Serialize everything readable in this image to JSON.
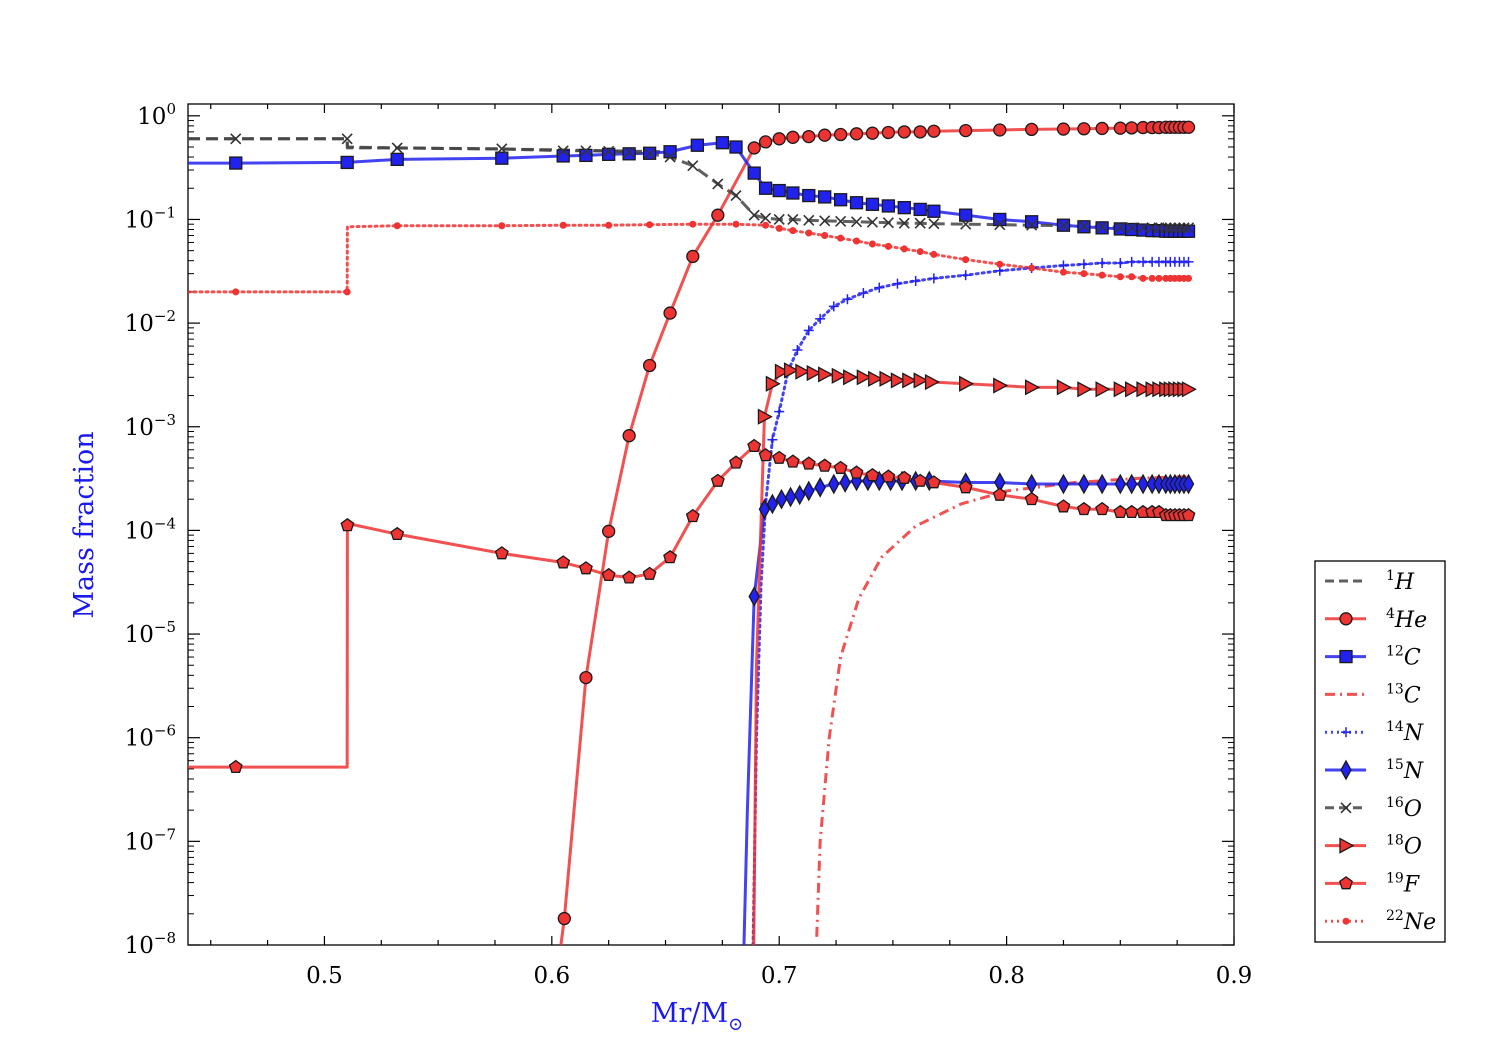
{
  "chart_data": {
    "type": "line",
    "title": "",
    "xlabel": "Mr/M",
    "xlabel_sub": "⊙",
    "ylabel": "Mass fraction",
    "xscale": "linear",
    "yscale": "log",
    "xlim": [
      0.44,
      0.9
    ],
    "ylim": [
      1e-08,
      1.3
    ],
    "x_ticks": [
      0.5,
      0.6,
      0.7,
      0.8,
      0.9
    ],
    "x_tick_labels": [
      "0.5",
      "0.6",
      "0.7",
      "0.8",
      "0.9"
    ],
    "y_ticks": [
      {
        "value": 1,
        "base": "10",
        "exp": "0"
      },
      {
        "value": 0.1,
        "base": "10",
        "exp": "−1"
      },
      {
        "value": 0.01,
        "base": "10",
        "exp": "−2"
      },
      {
        "value": 0.001,
        "base": "10",
        "exp": "−3"
      },
      {
        "value": 0.0001,
        "base": "10",
        "exp": "−4"
      },
      {
        "value": 1e-05,
        "base": "10",
        "exp": "−5"
      },
      {
        "value": 1e-06,
        "base": "10",
        "exp": "−6"
      },
      {
        "value": 1e-07,
        "base": "10",
        "exp": "−7"
      },
      {
        "value": 1e-08,
        "base": "10",
        "exp": "−8"
      }
    ],
    "grid": false,
    "legend_position": "right, outside, below center",
    "series": [
      {
        "key": "H1",
        "mass": "1",
        "element": "H",
        "color": "#444444",
        "dash": "dashed",
        "marker": "none",
        "x": [
          0.44,
          0.51,
          0.5101,
          0.53,
          0.57,
          0.6,
          0.65
        ],
        "y": [
          0.6,
          0.6,
          0.5,
          0.49,
          0.48,
          0.47,
          0.45
        ]
      },
      {
        "key": "He4",
        "mass": "4",
        "element": "He",
        "color": "#ee3333",
        "dash": "solid",
        "marker": "circle",
        "x": [
          0.604,
          0.6055,
          0.615,
          0.625,
          0.634,
          0.643,
          0.652,
          0.662,
          0.673,
          0.689,
          0.694,
          0.7,
          0.706,
          0.713,
          0.72,
          0.727,
          0.734,
          0.741,
          0.748,
          0.755,
          0.762,
          0.768,
          0.782,
          0.797,
          0.811,
          0.825,
          0.834,
          0.842,
          0.85,
          0.855,
          0.86,
          0.864,
          0.867,
          0.87,
          0.872,
          0.874,
          0.876,
          0.878,
          0.88
        ],
        "y": [
          1e-08,
          1.8e-08,
          3.8e-06,
          9.8e-05,
          0.00082,
          0.0039,
          0.0125,
          0.044,
          0.11,
          0.49,
          0.56,
          0.6,
          0.62,
          0.63,
          0.65,
          0.66,
          0.67,
          0.68,
          0.69,
          0.7,
          0.7,
          0.71,
          0.72,
          0.73,
          0.74,
          0.745,
          0.75,
          0.755,
          0.76,
          0.765,
          0.77,
          0.77,
          0.77,
          0.775,
          0.775,
          0.775,
          0.775,
          0.775,
          0.775
        ],
        "markers_from": 1
      },
      {
        "key": "C12",
        "mass": "12",
        "element": "C",
        "color": "#2222ee",
        "dash": "solid",
        "marker": "square",
        "x": [
          0.44,
          0.461,
          0.51,
          0.532,
          0.578,
          0.605,
          0.615,
          0.625,
          0.634,
          0.643,
          0.652,
          0.664,
          0.675,
          0.681,
          0.689,
          0.694,
          0.7,
          0.706,
          0.713,
          0.72,
          0.727,
          0.734,
          0.741,
          0.748,
          0.755,
          0.762,
          0.768,
          0.782,
          0.797,
          0.811,
          0.825,
          0.834,
          0.842,
          0.85,
          0.855,
          0.86,
          0.864,
          0.867,
          0.87,
          0.872,
          0.874,
          0.876,
          0.878,
          0.88
        ],
        "y": [
          0.35,
          0.35,
          0.355,
          0.38,
          0.39,
          0.41,
          0.415,
          0.425,
          0.43,
          0.435,
          0.45,
          0.52,
          0.55,
          0.5,
          0.28,
          0.2,
          0.19,
          0.18,
          0.17,
          0.165,
          0.155,
          0.145,
          0.14,
          0.135,
          0.13,
          0.125,
          0.12,
          0.11,
          0.1,
          0.095,
          0.088,
          0.085,
          0.083,
          0.081,
          0.08,
          0.079,
          0.078,
          0.078,
          0.077,
          0.077,
          0.077,
          0.077,
          0.077,
          0.077
        ],
        "markers_from": 1
      },
      {
        "key": "C13",
        "mass": "13",
        "element": "C",
        "color": "#ee3333",
        "dash": "dashdot",
        "marker": "none",
        "x": [
          0.7165,
          0.718,
          0.722,
          0.727,
          0.735,
          0.745,
          0.76,
          0.78,
          0.8,
          0.83,
          0.86,
          0.88
        ],
        "y": [
          1.2e-08,
          1e-07,
          1e-06,
          6e-06,
          2.2e-05,
          5.5e-05,
          0.00011,
          0.00018,
          0.00024,
          0.00029,
          0.00032,
          0.00033
        ]
      },
      {
        "key": "N14",
        "mass": "14",
        "element": "N",
        "color": "#2222ee",
        "dash": "dotted",
        "marker": "plus",
        "x": [
          0.6885,
          0.69,
          0.692,
          0.694,
          0.697,
          0.7,
          0.704,
          0.708,
          0.713,
          0.718,
          0.724,
          0.73,
          0.737,
          0.744,
          0.752,
          0.76,
          0.768,
          0.782,
          0.797,
          0.811,
          0.825,
          0.834,
          0.842,
          0.85,
          0.855,
          0.86,
          0.864,
          0.867,
          0.87,
          0.872,
          0.874,
          0.876,
          0.878,
          0.88
        ],
        "y": [
          1e-08,
          1e-06,
          3e-05,
          0.00018,
          0.00075,
          0.0014,
          0.0035,
          0.0055,
          0.0085,
          0.011,
          0.0145,
          0.017,
          0.0195,
          0.022,
          0.024,
          0.0255,
          0.027,
          0.029,
          0.032,
          0.034,
          0.036,
          0.037,
          0.038,
          0.038,
          0.039,
          0.039,
          0.039,
          0.039,
          0.039,
          0.039,
          0.039,
          0.039,
          0.039,
          0.039
        ],
        "markers_from": 3
      },
      {
        "key": "N15",
        "mass": "15",
        "element": "N",
        "color": "#2222ee",
        "dash": "solid",
        "marker": "diamond",
        "x": [
          0.6845,
          0.686,
          0.689,
          0.6935,
          0.697,
          0.701,
          0.705,
          0.709,
          0.713,
          0.718,
          0.724,
          0.729,
          0.734,
          0.739,
          0.744,
          0.749,
          0.754,
          0.76,
          0.766,
          0.782,
          0.797,
          0.811,
          0.825,
          0.834,
          0.842,
          0.85,
          0.855,
          0.86,
          0.864,
          0.867,
          0.87,
          0.872,
          0.874,
          0.876,
          0.878,
          0.88
        ],
        "y": [
          1e-08,
          2e-07,
          2.3e-05,
          0.00016,
          0.00018,
          0.0002,
          0.00021,
          0.00022,
          0.00024,
          0.00026,
          0.00028,
          0.00029,
          0.0003,
          0.0003,
          0.0003,
          0.0003,
          0.0003,
          0.0003,
          0.0003,
          0.00029,
          0.00029,
          0.00028,
          0.00028,
          0.00028,
          0.00028,
          0.00028,
          0.00028,
          0.00028,
          0.00028,
          0.00028,
          0.00028,
          0.00028,
          0.00028,
          0.00028,
          0.00028,
          0.00028
        ],
        "markers_from": 2
      },
      {
        "key": "O16",
        "mass": "16",
        "element": "O",
        "color": "#444444",
        "dash": "dashed",
        "marker": "x",
        "x": [
          0.44,
          0.461,
          0.51,
          0.5101,
          0.532,
          0.578,
          0.605,
          0.615,
          0.625,
          0.634,
          0.643,
          0.652,
          0.662,
          0.673,
          0.681,
          0.689,
          0.694,
          0.7,
          0.706,
          0.713,
          0.72,
          0.727,
          0.734,
          0.741,
          0.748,
          0.755,
          0.762,
          0.768,
          0.782,
          0.797,
          0.811,
          0.825,
          0.834,
          0.842,
          0.85,
          0.855,
          0.86,
          0.864,
          0.867,
          0.87,
          0.872,
          0.874,
          0.876,
          0.878,
          0.88
        ],
        "y": [
          0.6,
          0.6,
          0.6,
          0.49,
          0.49,
          0.48,
          0.46,
          0.46,
          0.455,
          0.445,
          0.43,
          0.4,
          0.33,
          0.22,
          0.17,
          0.11,
          0.103,
          0.1,
          0.1,
          0.098,
          0.097,
          0.096,
          0.095,
          0.094,
          0.093,
          0.092,
          0.092,
          0.091,
          0.09,
          0.089,
          0.088,
          0.087,
          0.086,
          0.085,
          0.084,
          0.083,
          0.083,
          0.083,
          0.083,
          0.083,
          0.083,
          0.083,
          0.083,
          0.083,
          0.083
        ],
        "markers_from": 1,
        "skip_markers": [
          3
        ]
      },
      {
        "key": "O18",
        "mass": "18",
        "element": "O",
        "color": "#ee3333",
        "dash": "solid",
        "marker": "triangle-right",
        "x": [
          0.6888,
          0.69,
          0.6935,
          0.697,
          0.701,
          0.705,
          0.71,
          0.715,
          0.72,
          0.726,
          0.731,
          0.737,
          0.742,
          0.747,
          0.752,
          0.757,
          0.762,
          0.767,
          0.782,
          0.797,
          0.811,
          0.825,
          0.834,
          0.842,
          0.85,
          0.855,
          0.86,
          0.864,
          0.867,
          0.87,
          0.872,
          0.874,
          0.876,
          0.878,
          0.88
        ],
        "y": [
          1e-08,
          5e-06,
          0.00125,
          0.0026,
          0.0034,
          0.0035,
          0.0034,
          0.0033,
          0.0032,
          0.0031,
          0.003,
          0.003,
          0.0029,
          0.0029,
          0.0028,
          0.0028,
          0.0028,
          0.0027,
          0.0026,
          0.0025,
          0.0024,
          0.0024,
          0.0023,
          0.0023,
          0.0023,
          0.0023,
          0.0023,
          0.0023,
          0.0023,
          0.0023,
          0.0023,
          0.0023,
          0.0023,
          0.0023,
          0.0023
        ],
        "markers_from": 2
      },
      {
        "key": "F19",
        "mass": "19",
        "element": "F",
        "color": "#ee3333",
        "dash": "solid",
        "marker": "pentagon",
        "x": [
          0.44,
          0.461,
          0.51,
          0.5101,
          0.513,
          0.532,
          0.578,
          0.605,
          0.615,
          0.625,
          0.634,
          0.643,
          0.652,
          0.662,
          0.673,
          0.681,
          0.689,
          0.694,
          0.7,
          0.706,
          0.713,
          0.72,
          0.727,
          0.734,
          0.741,
          0.748,
          0.755,
          0.762,
          0.768,
          0.782,
          0.797,
          0.811,
          0.825,
          0.834,
          0.842,
          0.85,
          0.855,
          0.86,
          0.864,
          0.867,
          0.87,
          0.872,
          0.874,
          0.876,
          0.878,
          0.88
        ],
        "y": [
          5.2e-07,
          5.2e-07,
          5.2e-07,
          0.000112,
          0.000113,
          9.2e-05,
          6e-05,
          4.9e-05,
          4.3e-05,
          3.7e-05,
          3.5e-05,
          3.8e-05,
          5.5e-05,
          0.000137,
          0.0003,
          0.00045,
          0.00065,
          0.00053,
          0.0005,
          0.00046,
          0.00044,
          0.00042,
          0.0004,
          0.00036,
          0.00034,
          0.00033,
          0.00032,
          0.0003,
          0.00029,
          0.00026,
          0.00022,
          0.0002,
          0.00017,
          0.00016,
          0.00016,
          0.00015,
          0.00015,
          0.00015,
          0.00015,
          0.00015,
          0.00014,
          0.00014,
          0.00014,
          0.00014,
          0.00014,
          0.00014
        ],
        "markers_from": 1,
        "skip_markers": [
          2,
          4
        ]
      },
      {
        "key": "Ne22",
        "mass": "22",
        "element": "Ne",
        "color": "#ee3333",
        "dash": "dotted",
        "marker": "dot",
        "x": [
          0.44,
          0.461,
          0.51,
          0.5101,
          0.532,
          0.578,
          0.605,
          0.625,
          0.643,
          0.662,
          0.681,
          0.694,
          0.7,
          0.706,
          0.713,
          0.72,
          0.727,
          0.734,
          0.741,
          0.748,
          0.755,
          0.762,
          0.768,
          0.782,
          0.797,
          0.811,
          0.825,
          0.834,
          0.842,
          0.85,
          0.855,
          0.86,
          0.864,
          0.867,
          0.87,
          0.872,
          0.874,
          0.876,
          0.878,
          0.88
        ],
        "y": [
          0.02,
          0.02,
          0.02,
          0.085,
          0.087,
          0.087,
          0.088,
          0.088,
          0.089,
          0.09,
          0.09,
          0.088,
          0.082,
          0.078,
          0.074,
          0.07,
          0.066,
          0.062,
          0.058,
          0.055,
          0.052,
          0.049,
          0.046,
          0.041,
          0.037,
          0.034,
          0.031,
          0.03,
          0.029,
          0.028,
          0.028,
          0.027,
          0.027,
          0.027,
          0.027,
          0.027,
          0.027,
          0.027,
          0.027,
          0.027
        ],
        "markers_from": 1,
        "skip_markers": [
          3
        ]
      }
    ]
  }
}
